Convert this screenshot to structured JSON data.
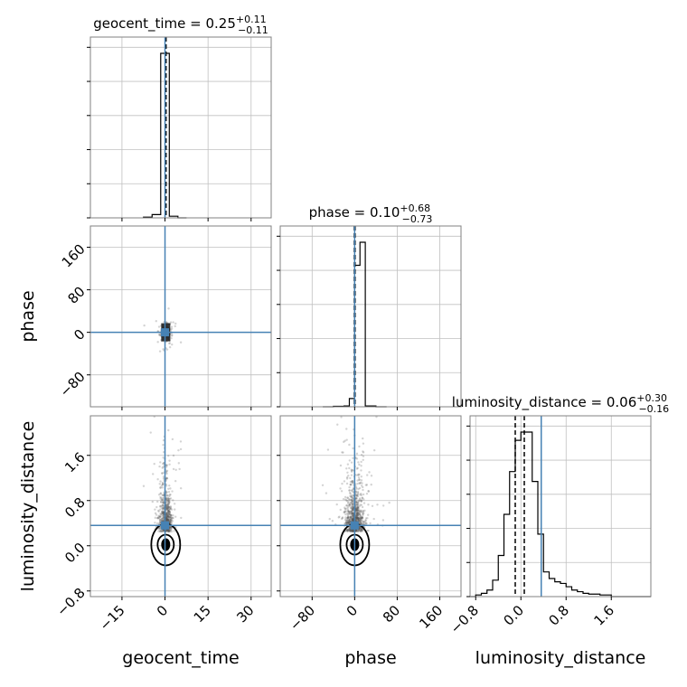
{
  "chart_data": {
    "type": "corner",
    "colors": {
      "truth": "#4682b4",
      "hist": "#000000",
      "grid": "#c0c0c0",
      "scatter": "#555555"
    },
    "truth": {
      "geocent_time": 0.0,
      "phase": 0.0,
      "luminosity_distance": 0.36
    },
    "parameters": [
      {
        "name": "geocent_time",
        "title": {
          "name": "geocent_time",
          "median": "0.25",
          "plus": "+0.11",
          "minus": "−0.11"
        },
        "range": [
          -26,
          37
        ],
        "ticks": [
          -15,
          0,
          15,
          30
        ],
        "tick_labels": [
          "−15",
          "0",
          "15",
          "30"
        ],
        "quantiles": [
          0.14,
          0.25,
          0.36
        ],
        "hist": {
          "edges": [
            -7.5,
            -4.5,
            -1.5,
            1.5,
            4.5,
            7.5
          ],
          "counts": [
            0.004,
            0.02,
            1.0,
            0.01,
            0.0
          ]
        }
      },
      {
        "name": "phase",
        "title": {
          "name": "phase",
          "median": "0.10",
          "plus": "+0.68",
          "minus": "−0.73"
        },
        "range": [
          -140,
          200
        ],
        "ticks": [
          -80,
          0,
          80,
          160
        ],
        "tick_labels": [
          "−80",
          "0",
          "80",
          "160"
        ],
        "quantiles": [
          -0.63,
          0.1,
          0.78
        ],
        "hist": {
          "edges": [
            -60,
            -40,
            -20,
            -10,
            0,
            10,
            20,
            40,
            60
          ],
          "counts": [
            0.0,
            0.003,
            0.005,
            0.05,
            0.86,
            1.0,
            0.005,
            0.0
          ]
        }
      },
      {
        "name": "luminosity_distance",
        "title": {
          "name": "luminosity_distance",
          "median": "0.06",
          "plus": "+0.30",
          "minus": "−0.16"
        },
        "range": [
          -0.9,
          2.3
        ],
        "ticks": [
          -0.8,
          0.0,
          0.8,
          1.6
        ],
        "tick_labels": [
          "−0.8",
          "0.0",
          "0.8",
          "1.6"
        ],
        "quantiles": [
          -0.1,
          0.06,
          0.36
        ],
        "hist": {
          "edges": [
            -0.9,
            -0.8,
            -0.7,
            -0.6,
            -0.5,
            -0.4,
            -0.3,
            -0.2,
            -0.1,
            0.0,
            0.1,
            0.2,
            0.3,
            0.4,
            0.5,
            0.6,
            0.7,
            0.8,
            0.9,
            1.0,
            1.1,
            1.2,
            1.4,
            1.6,
            2.3
          ],
          "counts": [
            0.0,
            0.01,
            0.02,
            0.04,
            0.1,
            0.25,
            0.5,
            0.76,
            0.95,
            1.0,
            1.0,
            0.7,
            0.38,
            0.15,
            0.11,
            0.09,
            0.08,
            0.06,
            0.04,
            0.03,
            0.02,
            0.015,
            0.01,
            0.0
          ]
        }
      }
    ],
    "scatter_pairs": [
      {
        "x": "geocent_time",
        "y": "phase",
        "cx": 0.25,
        "cy": 0.1,
        "sx": 0.8,
        "sy": 7,
        "n": 350
      },
      {
        "x": "geocent_time",
        "y": "luminosity_distance",
        "cx": 0.25,
        "cy": 0.25,
        "sx": 1.1,
        "sy": 0.35,
        "n": 700
      },
      {
        "x": "phase",
        "y": "luminosity_distance",
        "cx": 0.1,
        "cy": 0.25,
        "sx": 9,
        "sy": 0.35,
        "n": 900
      }
    ]
  }
}
